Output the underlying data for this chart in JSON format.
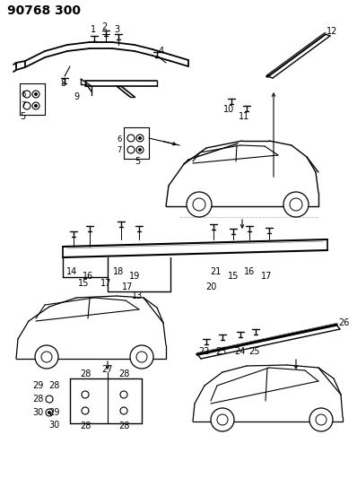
{
  "title": "90768 300",
  "bg_color": "#ffffff",
  "line_color": "#000000",
  "title_fontsize": 10,
  "label_fontsize": 7
}
